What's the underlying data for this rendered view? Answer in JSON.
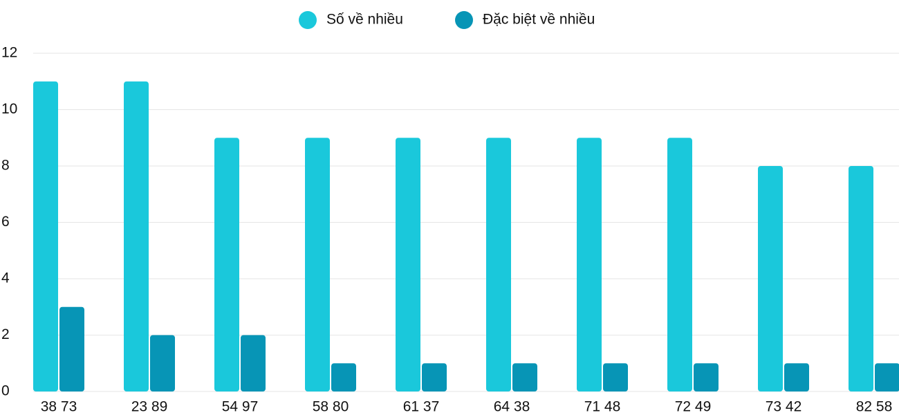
{
  "chart_data": {
    "type": "bar",
    "categories": [
      "38 73",
      "23 89",
      "54 97",
      "58 80",
      "61 37",
      "64 38",
      "71 48",
      "72 49",
      "73 42",
      "82 58"
    ],
    "series": [
      {
        "name": "Số về nhiều",
        "color": "#1ac8db",
        "values": [
          11,
          11,
          9,
          9,
          9,
          9,
          9,
          9,
          8,
          8
        ]
      },
      {
        "name": "Đặc biệt về nhiều",
        "color": "#0795b6",
        "values": [
          3,
          2,
          2,
          1,
          1,
          1,
          1,
          1,
          1,
          1
        ]
      }
    ],
    "ylim": [
      0,
      12
    ],
    "yticks": [
      0,
      2,
      4,
      6,
      8,
      10,
      12
    ],
    "grid": true,
    "legend": "top"
  }
}
